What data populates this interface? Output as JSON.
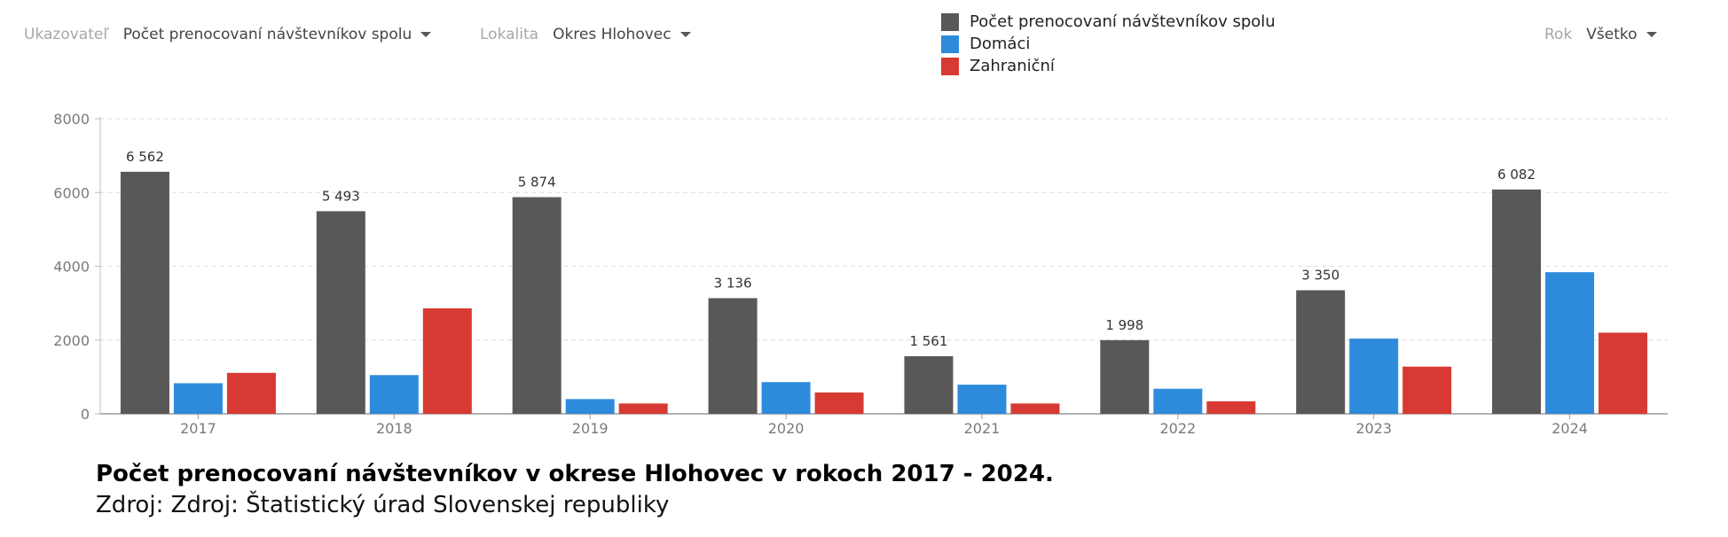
{
  "filters": {
    "indicator": {
      "label": "Ukazovateľ",
      "value": "Počet prenocovaní návštevníkov spolu"
    },
    "location": {
      "label": "Lokalita",
      "value": "Okres Hlohovec"
    },
    "year": {
      "label": "Rok",
      "value": "Všetko"
    }
  },
  "caption": {
    "title": "Počet prenocovaní návštevníkov v okrese Hlohovec v rokoch 2017 - 2024.",
    "source": "Zdroj: Zdroj: Štatistický úrad Slovenskej republiky"
  },
  "chart_data": {
    "type": "bar",
    "categories": [
      "2017",
      "2018",
      "2019",
      "2020",
      "2021",
      "2022",
      "2023",
      "2024"
    ],
    "series": [
      {
        "name": "Počet prenocovaní návštevníkov spolu",
        "color": "#595856",
        "values": [
          6562,
          5493,
          5874,
          3136,
          1561,
          1998,
          3350,
          6082
        ],
        "data_labels": [
          "6 562",
          "5 493",
          "5 874",
          "3 136",
          "1 561",
          "1 998",
          "3 350",
          "6 082"
        ]
      },
      {
        "name": "Domáci",
        "color": "#2e8bdc",
        "values": [
          830,
          1050,
          400,
          860,
          790,
          680,
          2040,
          3840
        ]
      },
      {
        "name": "Zahraniční",
        "color": "#d63a33",
        "values": [
          1110,
          2860,
          280,
          580,
          280,
          340,
          1280,
          2200
        ]
      }
    ],
    "y_ticks": [
      0,
      2000,
      4000,
      6000,
      8000
    ],
    "ylim": [
      0,
      8000
    ],
    "grid": true,
    "legend_position": "top-center"
  }
}
